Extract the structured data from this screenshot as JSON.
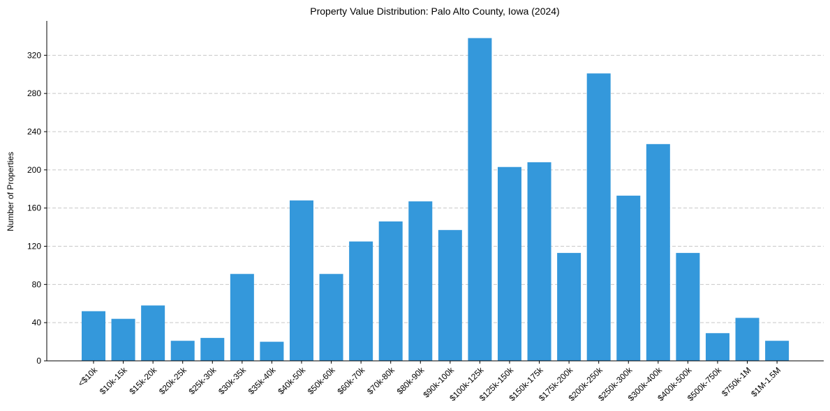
{
  "chart_data": {
    "type": "bar",
    "title": "Property Value Distribution: Palo Alto County, Iowa (2024)",
    "xlabel": "",
    "ylabel": "Number of Properties",
    "ylim": [
      0,
      356
    ],
    "yticks": [
      0,
      40,
      80,
      120,
      160,
      200,
      240,
      280,
      320
    ],
    "grid": "y-dashed",
    "bar_color": "#3498db",
    "categories": [
      "<$10k",
      "$10k-15k",
      "$15k-20k",
      "$20k-25k",
      "$25k-30k",
      "$30k-35k",
      "$35k-40k",
      "$40k-50k",
      "$50k-60k",
      "$60k-70k",
      "$70k-80k",
      "$80k-90k",
      "$90k-100k",
      "$100k-125k",
      "$125k-150k",
      "$150k-175k",
      "$175k-200k",
      "$200k-250k",
      "$250k-300k",
      "$300k-400k",
      "$400k-500k",
      "$500k-750k",
      "$750k-1M",
      "$1M-1.5M"
    ],
    "values": [
      52,
      44,
      58,
      21,
      24,
      91,
      20,
      168,
      91,
      125,
      146,
      167,
      137,
      338,
      203,
      208,
      113,
      301,
      173,
      227,
      113,
      29,
      45,
      21
    ]
  }
}
